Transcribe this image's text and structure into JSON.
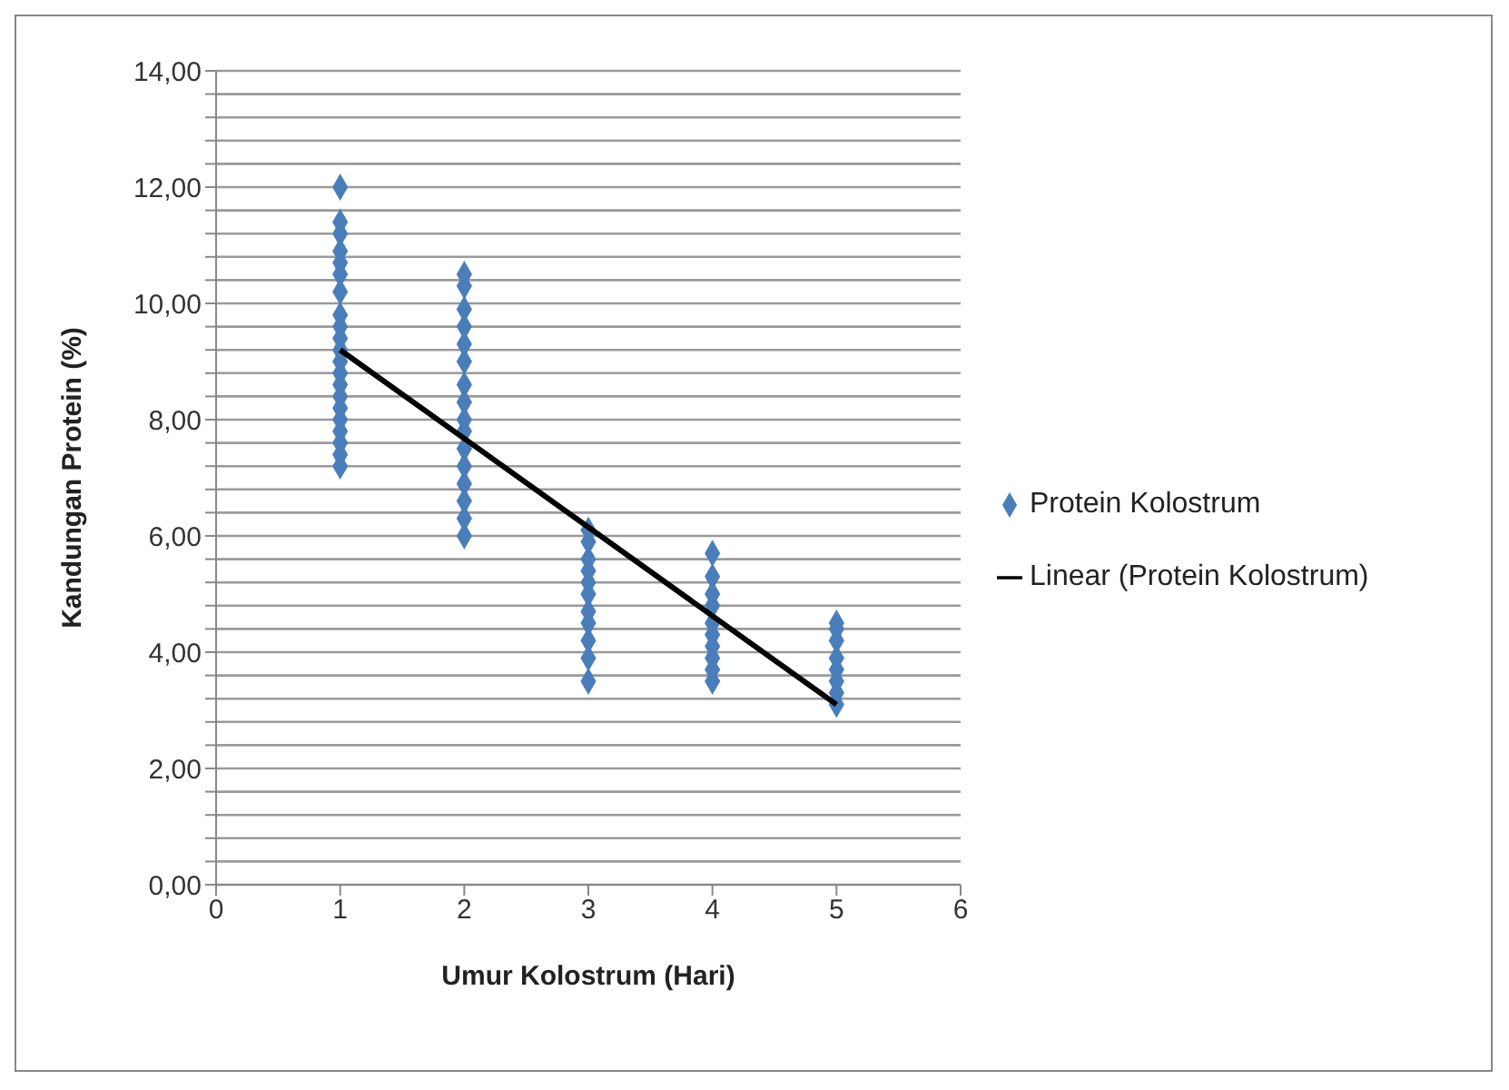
{
  "chart_data": {
    "type": "scatter",
    "xlabel": "Umur Kolostrum  (Hari)",
    "ylabel": "Kandungan Protein (%)",
    "xlim": [
      0,
      6
    ],
    "xticks": [
      0,
      1,
      2,
      3,
      4,
      5,
      6
    ],
    "ylim": [
      0,
      14
    ],
    "yticks": [
      {
        "value": 0,
        "label": "0,00"
      },
      {
        "value": 0.4,
        "label": null
      },
      {
        "value": 0.8,
        "label": null
      },
      {
        "value": 1.2,
        "label": null
      },
      {
        "value": 1.6,
        "label": null
      },
      {
        "value": 2,
        "label": "2,00"
      },
      {
        "value": 2.4,
        "label": null
      },
      {
        "value": 2.8,
        "label": null
      },
      {
        "value": 3.2,
        "label": null
      },
      {
        "value": 3.6,
        "label": null
      },
      {
        "value": 4,
        "label": "4,00"
      },
      {
        "value": 4.4,
        "label": null
      },
      {
        "value": 4.8,
        "label": null
      },
      {
        "value": 5.2,
        "label": null
      },
      {
        "value": 5.6,
        "label": null
      },
      {
        "value": 6,
        "label": "6,00"
      },
      {
        "value": 6.4,
        "label": null
      },
      {
        "value": 6.8,
        "label": null
      },
      {
        "value": 7.2,
        "label": null
      },
      {
        "value": 7.6,
        "label": null
      },
      {
        "value": 8,
        "label": "8,00"
      },
      {
        "value": 8.4,
        "label": null
      },
      {
        "value": 8.8,
        "label": null
      },
      {
        "value": 9.2,
        "label": null
      },
      {
        "value": 9.6,
        "label": null
      },
      {
        "value": 10,
        "label": "10,00"
      },
      {
        "value": 10.4,
        "label": null
      },
      {
        "value": 10.8,
        "label": null
      },
      {
        "value": 11.2,
        "label": null
      },
      {
        "value": 11.6,
        "label": null
      },
      {
        "value": 12,
        "label": "12,00"
      },
      {
        "value": 12.4,
        "label": null
      },
      {
        "value": 12.8,
        "label": null
      },
      {
        "value": 13.2,
        "label": null
      },
      {
        "value": 13.6,
        "label": null
      },
      {
        "value": 14,
        "label": "14,00"
      }
    ],
    "grid": "y",
    "legend": "right",
    "series": [
      {
        "name": "Protein Kolostrum",
        "marker": "diamond",
        "color": "#4a7ebb",
        "x": [
          1,
          1,
          1,
          1,
          1,
          1,
          1,
          1,
          1,
          1,
          1,
          1,
          1,
          1,
          1,
          1,
          1,
          1,
          1,
          1,
          1,
          2,
          2,
          2,
          2,
          2,
          2,
          2,
          2,
          2,
          2,
          2,
          2,
          2,
          2,
          2,
          2,
          3,
          3,
          3,
          3,
          3,
          3,
          3,
          3,
          3,
          3,
          3,
          4,
          4,
          4,
          4,
          4,
          4,
          4,
          4,
          4,
          4,
          5,
          5,
          5,
          5,
          5,
          5,
          5,
          5
        ],
        "values": [
          7.2,
          7.4,
          7.6,
          7.8,
          8.0,
          8.2,
          8.4,
          8.6,
          8.8,
          9.0,
          9.2,
          9.4,
          9.6,
          9.8,
          10.2,
          10.5,
          10.7,
          10.9,
          11.2,
          11.4,
          12.0,
          6.0,
          6.3,
          6.6,
          6.9,
          7.2,
          7.5,
          7.8,
          8.0,
          8.3,
          8.6,
          9.0,
          9.3,
          9.6,
          9.9,
          10.3,
          10.5,
          3.5,
          3.9,
          4.2,
          4.5,
          4.7,
          5.0,
          5.2,
          5.4,
          5.6,
          5.9,
          6.1,
          3.5,
          3.7,
          3.9,
          4.1,
          4.3,
          4.5,
          4.8,
          5.0,
          5.3,
          5.7,
          3.1,
          3.3,
          3.5,
          3.7,
          3.9,
          4.2,
          4.4,
          4.5
        ]
      },
      {
        "name": "Linear (Protein Kolostrum)",
        "type": "line",
        "color": "#000000",
        "line_style": "solid",
        "x": [
          1,
          5
        ],
        "values": [
          9.2,
          3.1
        ]
      }
    ]
  }
}
